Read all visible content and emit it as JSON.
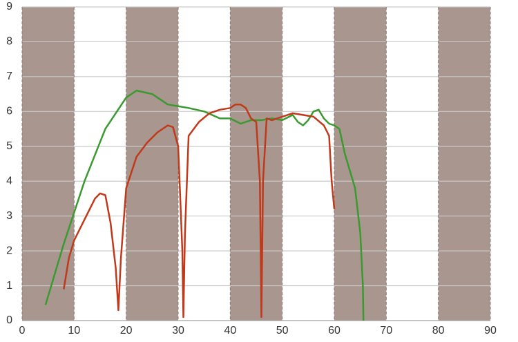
{
  "chart_data": {
    "type": "line",
    "xlim": [
      0,
      90
    ],
    "ylim": [
      0,
      9
    ],
    "xticks": [
      0,
      10,
      20,
      30,
      40,
      50,
      60,
      70,
      80,
      90
    ],
    "yticks": [
      0,
      1,
      2,
      3,
      4,
      5,
      6,
      7,
      8,
      9
    ],
    "grid": true,
    "band_color": "#a8968f",
    "series": [
      {
        "color": "#3a9a2f",
        "x": [
          4.5,
          8,
          12,
          16,
          20,
          22,
          25,
          28,
          32,
          35,
          38,
          40,
          42,
          44,
          46,
          48,
          50,
          52,
          53,
          54,
          55,
          56,
          57,
          58,
          59,
          60,
          61,
          62,
          63,
          64,
          65,
          65.5,
          65.6
        ],
        "values": [
          0.45,
          2.2,
          4.0,
          5.5,
          6.4,
          6.6,
          6.5,
          6.2,
          6.1,
          6.0,
          5.8,
          5.8,
          5.65,
          5.75,
          5.75,
          5.8,
          5.75,
          5.9,
          5.7,
          5.6,
          5.75,
          6.0,
          6.05,
          5.8,
          5.65,
          5.6,
          5.5,
          4.8,
          4.3,
          3.8,
          2.5,
          1.0,
          0
        ]
      },
      {
        "color": "#c0391a",
        "x": [
          8,
          9,
          10,
          12,
          14,
          15,
          16,
          17,
          18,
          18.5,
          19,
          20,
          22,
          24,
          26,
          28,
          29,
          30,
          30.8,
          31,
          31.3,
          32,
          34,
          36,
          38,
          40,
          41,
          42,
          43,
          44,
          45,
          45.7,
          46,
          46.3,
          47,
          48,
          50,
          52,
          54,
          56,
          58,
          59,
          59.5,
          60
        ],
        "values": [
          0.9,
          1.8,
          2.3,
          2.9,
          3.5,
          3.65,
          3.6,
          2.8,
          1.5,
          0.3,
          1.8,
          3.8,
          4.7,
          5.1,
          5.4,
          5.6,
          5.55,
          5.0,
          2.0,
          0.1,
          2.5,
          5.3,
          5.7,
          5.95,
          6.05,
          6.1,
          6.2,
          6.2,
          6.1,
          5.8,
          5.7,
          4.0,
          0.1,
          4.0,
          5.8,
          5.75,
          5.85,
          5.95,
          5.9,
          5.85,
          5.6,
          5.3,
          4.0,
          3.2
        ]
      }
    ]
  }
}
